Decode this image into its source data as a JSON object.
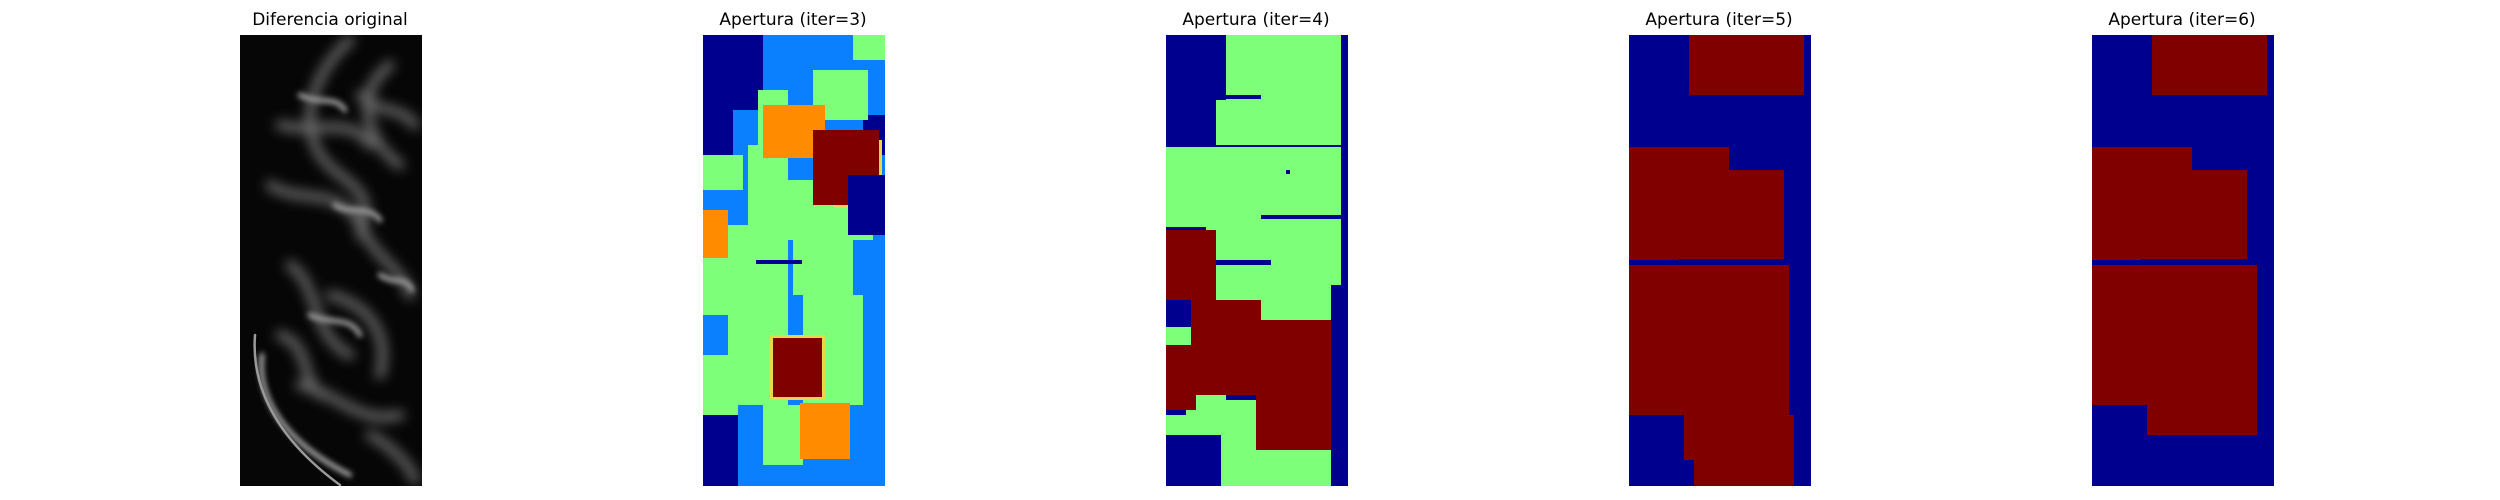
{
  "panels": [
    {
      "title": "Diferencia original"
    },
    {
      "title": "Apertura (iter=3)"
    },
    {
      "title": "Apertura (iter=4)"
    },
    {
      "title": "Apertura (iter=5)"
    },
    {
      "title": "Apertura (iter=6)"
    }
  ],
  "colors": {
    "navy": "#00008f",
    "blue": "#0a80ff",
    "green": "#7dff7a",
    "orange": "#ff8c00",
    "maroon": "#800000",
    "yellow": "#e6d84a"
  }
}
